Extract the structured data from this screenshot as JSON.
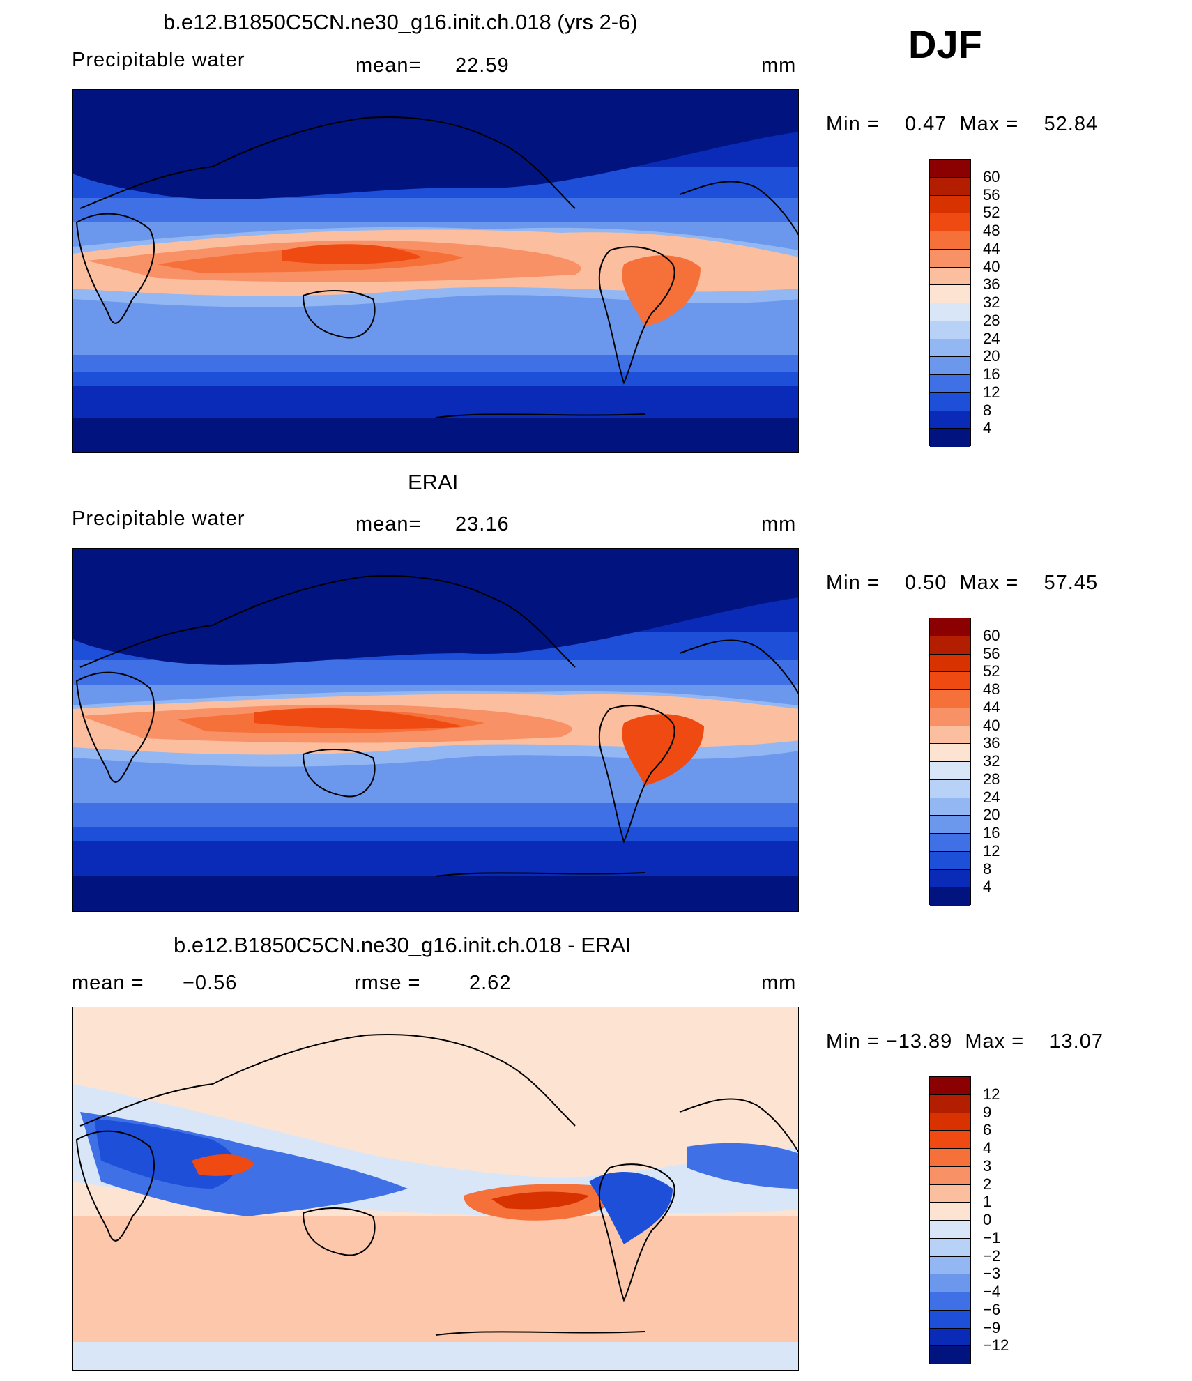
{
  "season": "DJF",
  "panel1": {
    "title": "b.e12.B1850C5CN.ne30_g16.init.ch.018 (yrs 2-6)",
    "variable": "Precipitable water",
    "mean_label": "mean=",
    "mean_value": "22.59",
    "units": "mm",
    "minmax": "Min =    0.47  Max =    52.84",
    "colorbar_ticks": [
      "60",
      "56",
      "52",
      "48",
      "44",
      "40",
      "36",
      "32",
      "28",
      "24",
      "20",
      "16",
      "12",
      "8",
      "4"
    ]
  },
  "panel2": {
    "title": "ERAI",
    "variable": "Precipitable water",
    "mean_label": "mean=",
    "mean_value": "23.16",
    "units": "mm",
    "minmax": "Min =    0.50  Max =    57.45",
    "colorbar_ticks": [
      "60",
      "56",
      "52",
      "48",
      "44",
      "40",
      "36",
      "32",
      "28",
      "24",
      "20",
      "16",
      "12",
      "8",
      "4"
    ]
  },
  "panel3": {
    "title": "b.e12.B1850C5CN.ne30_g16.init.ch.018 - ERAI",
    "mean_label": "mean =",
    "mean_value": "−0.56",
    "rmse_label": "rmse =",
    "rmse_value": "2.62",
    "units": "mm",
    "minmax": "Min = −13.89  Max =    13.07",
    "colorbar_ticks": [
      "12",
      "9",
      "6",
      "4",
      "3",
      "2",
      "1",
      "0",
      "−1",
      "−2",
      "−3",
      "−4",
      "−6",
      "−9",
      "−12"
    ]
  },
  "colors": {
    "seq16": [
      "#8b0000",
      "#b41e00",
      "#d73200",
      "#ef4a12",
      "#f6703a",
      "#f99166",
      "#fbbfa0",
      "#fde4d2",
      "#d9e6f8",
      "#b8d2f7",
      "#93b7f2",
      "#6b97ec",
      "#3f70e6",
      "#1e4fd9",
      "#0a2bb8",
      "#00137f"
    ],
    "div16": [
      "#8b0000",
      "#b41e00",
      "#d73200",
      "#ef4a12",
      "#f6703a",
      "#f99166",
      "#fbbfa0",
      "#fde4d2",
      "#d9e6f8",
      "#b8d2f7",
      "#93b7f2",
      "#6b97ec",
      "#3f70e6",
      "#1e4fd9",
      "#0a2bb8",
      "#00137f"
    ]
  }
}
